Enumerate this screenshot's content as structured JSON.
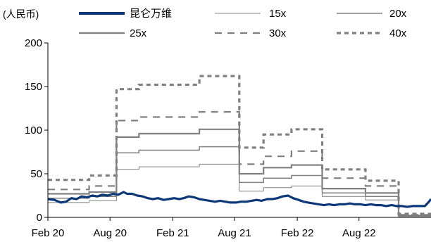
{
  "chart_data": {
    "type": "line",
    "unit_label": "(人民币)",
    "ylim": [
      0,
      200
    ],
    "yticks": [
      0,
      50,
      100,
      150,
      200
    ],
    "x_range": [
      "2020-02-01",
      "2023-02-28"
    ],
    "xticks": [
      {
        "date": "2020-02-01",
        "label": "Feb 20"
      },
      {
        "date": "2020-08-01",
        "label": "Aug 20"
      },
      {
        "date": "2021-02-01",
        "label": "Feb 21"
      },
      {
        "date": "2021-08-01",
        "label": "Aug 21"
      },
      {
        "date": "2022-02-01",
        "label": "Feb 22"
      },
      {
        "date": "2022-08-01",
        "label": "Aug 22"
      }
    ],
    "colors": {
      "price": "#0d3878",
      "bands": "#808080",
      "axis": "#000000"
    },
    "legend_position": "top",
    "price_series": {
      "name": "昆仑万维",
      "points": [
        [
          "2020-02-01",
          21
        ],
        [
          "2020-02-20",
          20
        ],
        [
          "2020-03-10",
          17
        ],
        [
          "2020-03-25",
          18
        ],
        [
          "2020-04-10",
          22
        ],
        [
          "2020-04-25",
          21
        ],
        [
          "2020-05-10",
          24
        ],
        [
          "2020-05-25",
          23
        ],
        [
          "2020-06-10",
          25
        ],
        [
          "2020-06-25",
          24
        ],
        [
          "2020-07-10",
          26
        ],
        [
          "2020-07-25",
          25
        ],
        [
          "2020-08-10",
          27
        ],
        [
          "2020-08-25",
          26
        ],
        [
          "2020-09-10",
          29
        ],
        [
          "2020-09-20",
          27
        ],
        [
          "2020-10-05",
          27
        ],
        [
          "2020-10-20",
          25
        ],
        [
          "2020-11-05",
          24
        ],
        [
          "2020-11-20",
          22
        ],
        [
          "2020-12-05",
          21
        ],
        [
          "2020-12-20",
          22
        ],
        [
          "2021-01-05",
          20
        ],
        [
          "2021-01-20",
          21
        ],
        [
          "2021-02-05",
          22
        ],
        [
          "2021-02-20",
          21
        ],
        [
          "2021-03-05",
          22
        ],
        [
          "2021-03-20",
          24
        ],
        [
          "2021-04-05",
          23
        ],
        [
          "2021-04-20",
          21
        ],
        [
          "2021-05-05",
          20
        ],
        [
          "2021-05-20",
          19
        ],
        [
          "2021-06-05",
          18
        ],
        [
          "2021-06-20",
          19
        ],
        [
          "2021-07-05",
          18
        ],
        [
          "2021-07-20",
          17
        ],
        [
          "2021-08-05",
          17
        ],
        [
          "2021-08-20",
          18
        ],
        [
          "2021-09-05",
          18
        ],
        [
          "2021-09-20",
          19
        ],
        [
          "2021-10-05",
          20
        ],
        [
          "2021-10-20",
          19
        ],
        [
          "2021-11-05",
          21
        ],
        [
          "2021-11-20",
          21
        ],
        [
          "2021-12-05",
          22
        ],
        [
          "2021-12-20",
          24
        ],
        [
          "2022-01-05",
          25
        ],
        [
          "2022-01-20",
          22
        ],
        [
          "2022-02-05",
          20
        ],
        [
          "2022-02-20",
          18
        ],
        [
          "2022-03-05",
          17
        ],
        [
          "2022-03-20",
          16
        ],
        [
          "2022-04-05",
          15
        ],
        [
          "2022-04-20",
          14
        ],
        [
          "2022-05-05",
          15
        ],
        [
          "2022-05-20",
          14
        ],
        [
          "2022-06-05",
          15
        ],
        [
          "2022-06-20",
          15
        ],
        [
          "2022-07-05",
          16
        ],
        [
          "2022-07-20",
          15
        ],
        [
          "2022-08-05",
          15
        ],
        [
          "2022-08-20",
          14
        ],
        [
          "2022-09-05",
          15
        ],
        [
          "2022-09-20",
          14
        ],
        [
          "2022-10-05",
          14
        ],
        [
          "2022-10-20",
          13
        ],
        [
          "2022-11-05",
          14
        ],
        [
          "2022-11-20",
          13
        ],
        [
          "2022-12-05",
          13
        ],
        [
          "2022-12-20",
          12
        ],
        [
          "2023-01-05",
          13
        ],
        [
          "2023-01-20",
          13
        ],
        [
          "2023-02-10",
          13
        ],
        [
          "2023-02-20",
          17
        ],
        [
          "2023-02-28",
          21
        ]
      ]
    },
    "band_series": [
      {
        "name": "15x",
        "dash": "solid",
        "width": 1,
        "steps": [
          [
            "2020-02-01",
            17
          ],
          [
            "2020-06-01",
            19
          ],
          [
            "2020-08-20",
            55
          ],
          [
            "2020-10-25",
            58
          ],
          [
            "2021-04-20",
            61
          ],
          [
            "2021-08-15",
            30
          ],
          [
            "2021-10-25",
            34
          ],
          [
            "2022-01-15",
            36
          ],
          [
            "2022-04-15",
            24
          ],
          [
            "2022-08-20",
            20
          ],
          [
            "2022-11-25",
            1
          ],
          [
            "2023-02-28",
            1
          ]
        ]
      },
      {
        "name": "20x",
        "dash": "solid",
        "width": 1.5,
        "steps": [
          [
            "2020-02-01",
            22
          ],
          [
            "2020-06-01",
            24
          ],
          [
            "2020-08-20",
            74
          ],
          [
            "2020-10-25",
            77
          ],
          [
            "2021-04-20",
            81
          ],
          [
            "2021-08-15",
            40
          ],
          [
            "2021-10-25",
            45
          ],
          [
            "2022-01-15",
            48
          ],
          [
            "2022-04-15",
            28
          ],
          [
            "2022-08-20",
            24
          ],
          [
            "2022-11-25",
            2
          ],
          [
            "2023-02-28",
            2
          ]
        ]
      },
      {
        "name": "25x",
        "dash": "solid",
        "width": 2.2,
        "steps": [
          [
            "2020-02-01",
            27
          ],
          [
            "2020-06-01",
            29
          ],
          [
            "2020-08-20",
            92
          ],
          [
            "2020-10-25",
            96
          ],
          [
            "2021-04-20",
            101
          ],
          [
            "2021-08-15",
            50
          ],
          [
            "2021-10-25",
            57
          ],
          [
            "2022-01-15",
            60
          ],
          [
            "2022-04-15",
            33
          ],
          [
            "2022-08-20",
            28
          ],
          [
            "2022-11-25",
            2
          ],
          [
            "2023-02-28",
            2
          ]
        ]
      },
      {
        "name": "30x",
        "dash": "dashed",
        "width": 2.2,
        "steps": [
          [
            "2020-02-01",
            32
          ],
          [
            "2020-06-01",
            36
          ],
          [
            "2020-08-20",
            111
          ],
          [
            "2020-10-25",
            115
          ],
          [
            "2021-04-20",
            121
          ],
          [
            "2021-08-15",
            61
          ],
          [
            "2021-10-25",
            70
          ],
          [
            "2022-01-15",
            76
          ],
          [
            "2022-04-15",
            45
          ],
          [
            "2022-08-20",
            36
          ],
          [
            "2022-11-25",
            3
          ],
          [
            "2023-02-28",
            3
          ]
        ]
      },
      {
        "name": "40x",
        "dash": "dashed",
        "width": 3.2,
        "steps": [
          [
            "2020-02-01",
            43
          ],
          [
            "2020-06-01",
            48
          ],
          [
            "2020-08-20",
            147
          ],
          [
            "2020-10-25",
            152
          ],
          [
            "2021-04-20",
            162
          ],
          [
            "2021-08-15",
            80
          ],
          [
            "2021-10-25",
            95
          ],
          [
            "2022-01-15",
            101
          ],
          [
            "2022-04-15",
            55
          ],
          [
            "2022-08-20",
            42
          ],
          [
            "2022-11-25",
            4
          ],
          [
            "2023-02-28",
            4
          ]
        ]
      }
    ]
  }
}
